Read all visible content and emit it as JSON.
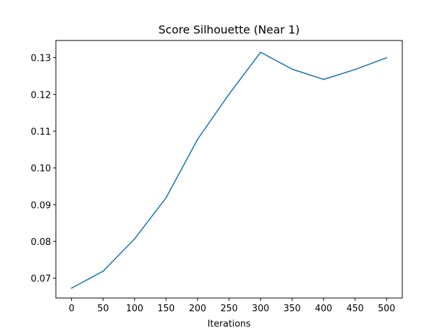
{
  "chart_data": {
    "type": "line",
    "title": "Score Silhouette (Near 1)",
    "xlabel": "Iterations",
    "ylabel": "",
    "x": [
      0,
      50,
      100,
      150,
      200,
      250,
      300,
      350,
      400,
      450,
      500
    ],
    "series": [
      {
        "values": [
          0.0673,
          0.0719,
          0.0807,
          0.0919,
          0.1078,
          0.1201,
          0.1315,
          0.1269,
          0.1241,
          0.1268,
          0.13
        ],
        "color": "#1f77b4"
      }
    ],
    "xlim": [
      -25,
      525
    ],
    "ylim": [
      0.0646,
      0.1347
    ],
    "xticks": [
      0,
      50,
      100,
      150,
      200,
      250,
      300,
      350,
      400,
      450,
      500
    ],
    "xtick_labels": [
      "0",
      "50",
      "100",
      "150",
      "200",
      "250",
      "300",
      "350",
      "400",
      "450",
      "500"
    ],
    "yticks": [
      0.07,
      0.08,
      0.09,
      0.1,
      0.11,
      0.12,
      0.13
    ],
    "ytick_labels": [
      "0.07",
      "0.08",
      "0.09",
      "0.10",
      "0.11",
      "0.12",
      "0.13"
    ],
    "grid": false,
    "legend": "none"
  }
}
